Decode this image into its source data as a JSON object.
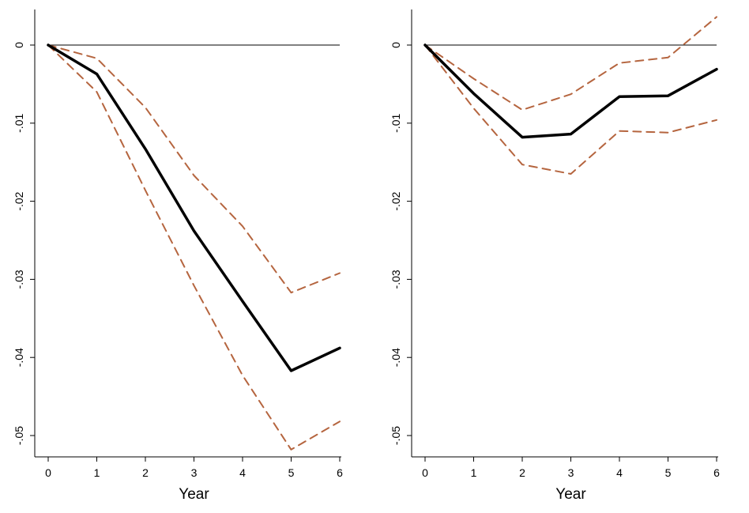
{
  "chart_data": [
    {
      "type": "line",
      "title": "",
      "xlabel": "Year",
      "ylabel": "",
      "x": [
        0,
        1,
        2,
        3,
        4,
        5,
        6
      ],
      "xticks": [
        "0",
        "1",
        "2",
        "3",
        "4",
        "5",
        "6"
      ],
      "yticks": [
        0,
        -0.01,
        -0.02,
        -0.03,
        -0.04,
        -0.05
      ],
      "ytick_labels": [
        "0",
        "-.01",
        "-.02",
        "-.03",
        "-.04",
        "-.05"
      ],
      "xlim": [
        0,
        6
      ],
      "ylim": [
        -0.0525,
        0.0045
      ],
      "grid": false,
      "reference_line": 0,
      "series": [
        {
          "role": "estimate",
          "color": "#000000",
          "style": "solid",
          "values": [
            0,
            -0.0037,
            -0.0133,
            -0.0238,
            -0.0328,
            -0.0417,
            -0.0388
          ]
        },
        {
          "role": "upper-bound",
          "color": "#b5653f",
          "style": "dashed",
          "values": [
            0,
            -0.0017,
            -0.008,
            -0.0167,
            -0.0232,
            -0.0317,
            -0.0292
          ]
        },
        {
          "role": "lower-bound",
          "color": "#b5653f",
          "style": "dashed",
          "values": [
            0,
            -0.006,
            -0.0186,
            -0.0308,
            -0.0423,
            -0.0518,
            -0.0482
          ]
        }
      ]
    },
    {
      "type": "line",
      "title": "",
      "xlabel": "Year",
      "ylabel": "",
      "x": [
        0,
        1,
        2,
        3,
        4,
        5,
        6
      ],
      "xticks": [
        "0",
        "1",
        "2",
        "3",
        "4",
        "5",
        "6"
      ],
      "yticks": [
        0,
        -0.01,
        -0.02,
        -0.03,
        -0.04,
        -0.05
      ],
      "ytick_labels": [
        "0",
        "-.01",
        "-.02",
        "-.03",
        "-.04",
        "-.05"
      ],
      "xlim": [
        0,
        6
      ],
      "ylim": [
        -0.0525,
        0.0045
      ],
      "grid": false,
      "reference_line": 0,
      "series": [
        {
          "role": "estimate",
          "color": "#000000",
          "style": "solid",
          "values": [
            0,
            -0.0062,
            -0.0118,
            -0.0114,
            -0.0066,
            -0.0065,
            -0.0031
          ]
        },
        {
          "role": "upper-bound",
          "color": "#b5653f",
          "style": "dashed",
          "values": [
            0,
            -0.0043,
            -0.0083,
            -0.0063,
            -0.0023,
            -0.0016,
            0.0036
          ]
        },
        {
          "role": "lower-bound",
          "color": "#b5653f",
          "style": "dashed",
          "values": [
            0,
            -0.0081,
            -0.0153,
            -0.0165,
            -0.011,
            -0.0112,
            -0.0096
          ]
        }
      ]
    }
  ]
}
